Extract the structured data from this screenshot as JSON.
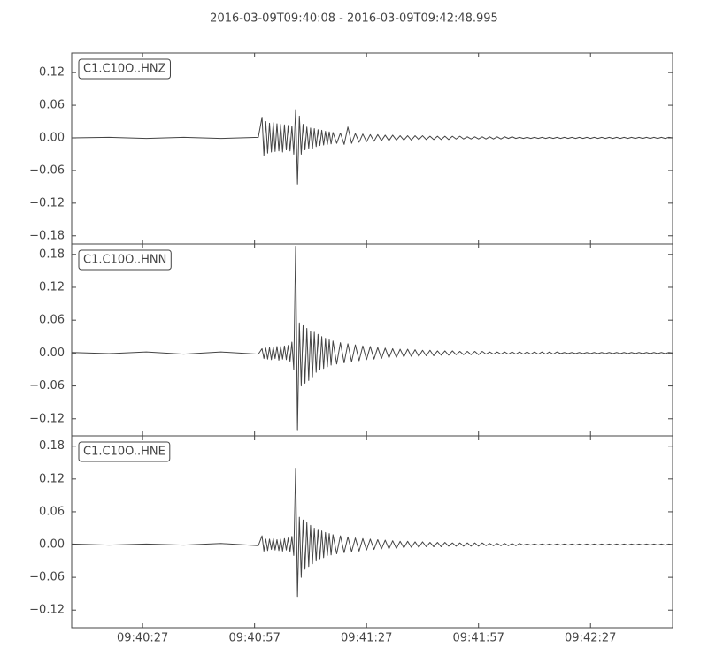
{
  "chart_data": {
    "type": "line",
    "title": "2016-03-09T09:40:08  -  2016-03-09T09:42:48.995",
    "xlim": [
      0,
      160.995
    ],
    "xticks": [
      {
        "value": 19,
        "label": "09:40:27"
      },
      {
        "value": 49,
        "label": "09:40:57"
      },
      {
        "value": 79,
        "label": "09:41:27"
      },
      {
        "value": 109,
        "label": "09:41:57"
      },
      {
        "value": 139,
        "label": "09:42:27"
      }
    ],
    "x": [
      0,
      10,
      20,
      30,
      40,
      50,
      51,
      51.5,
      52,
      52.5,
      53,
      53.5,
      54,
      54.5,
      55,
      55.5,
      56,
      56.5,
      57,
      57.5,
      58,
      58.5,
      59,
      59.5,
      60,
      60.5,
      61,
      61.5,
      62,
      62.5,
      63,
      63.5,
      64,
      64.5,
      65,
      65.5,
      66,
      66.5,
      67,
      67.5,
      68,
      68.5,
      69,
      69.5,
      70,
      71,
      72,
      73,
      74,
      75,
      76,
      77,
      78,
      79,
      80,
      81,
      82,
      83,
      84,
      85,
      86,
      87,
      88,
      89,
      90,
      91,
      92,
      93,
      94,
      95,
      96,
      97,
      98,
      99,
      100,
      101,
      102,
      103,
      104,
      105,
      106,
      107,
      108,
      109,
      110,
      111,
      112,
      113,
      114,
      115,
      116,
      117,
      118,
      119,
      120,
      121,
      122,
      123,
      124,
      125,
      126,
      127,
      128,
      129,
      130,
      131,
      132,
      133,
      134,
      135,
      136,
      137,
      138,
      139,
      140,
      141,
      142,
      143,
      144,
      145,
      146,
      147,
      148,
      149,
      150,
      151,
      152,
      153,
      154,
      155,
      156,
      157,
      158,
      159,
      160,
      160.995
    ],
    "series": [
      {
        "name": "C1.C10O..HNZ",
        "color": "#444444",
        "ylim": [
          -0.195,
          0.156
        ],
        "yticks": [
          {
            "value": -0.18,
            "label": "−0.18"
          },
          {
            "value": -0.12,
            "label": "−0.12"
          },
          {
            "value": -0.06,
            "label": "−0.06"
          },
          {
            "value": 0,
            "label": "0.00"
          },
          0.06,
          0.12
        ],
        "values": [
          0,
          0.001,
          -0.001,
          0.001,
          -0.001,
          0.001,
          0.038,
          -0.032,
          0.03,
          -0.028,
          0.027,
          -0.026,
          0.028,
          -0.025,
          0.026,
          -0.024,
          0.025,
          -0.026,
          0.024,
          -0.022,
          0.023,
          -0.024,
          0.022,
          -0.03,
          0.052,
          -0.085,
          0.04,
          -0.03,
          0.025,
          -0.022,
          0.02,
          -0.019,
          0.018,
          -0.02,
          0.017,
          -0.016,
          0.015,
          -0.014,
          0.014,
          -0.013,
          0.012,
          -0.012,
          0.011,
          -0.011,
          0.01,
          -0.01,
          0.009,
          -0.012,
          0.02,
          -0.01,
          0.008,
          -0.008,
          0.007,
          -0.007,
          0.006,
          -0.006,
          0.006,
          -0.005,
          0.005,
          -0.005,
          0.005,
          -0.004,
          0.004,
          -0.004,
          0.004,
          -0.004,
          0.004,
          -0.003,
          0.004,
          -0.003,
          0.003,
          -0.003,
          0.003,
          -0.003,
          0.003,
          -0.003,
          0.003,
          -0.002,
          0.003,
          -0.002,
          0.002,
          -0.002,
          0.002,
          -0.002,
          0.002,
          -0.002,
          0.002,
          -0.002,
          0.002,
          -0.002,
          0.002,
          -0.001,
          0.002,
          -0.001,
          0.001,
          -0.001,
          0.001,
          -0.001,
          0.001,
          -0.001,
          0.001,
          -0.001,
          0.001,
          -0.001,
          0.001,
          -0.001,
          0.001,
          -0.001,
          0.001,
          -0.001,
          0.001,
          -0.001,
          0.001,
          -0.001,
          0.001,
          -0.001,
          0.001,
          -0.001,
          0.001,
          -0.001,
          0.001,
          -0.001,
          0.001,
          -0.001,
          0.001,
          -0.001,
          0.001,
          -0.001,
          0.001,
          -0.001,
          0.001,
          -0.001,
          0.001,
          -0.001,
          0.001,
          0
        ]
      },
      {
        "name": "C1.C10O..HNN",
        "color": "#444444",
        "ylim": [
          -0.151,
          0.199
        ],
        "yticks": [
          {
            "value": -0.12,
            "label": "−0.12"
          },
          {
            "value": -0.06,
            "label": "−0.06"
          },
          {
            "value": 0,
            "label": "0.00"
          },
          0.06,
          0.12,
          0.18
        ],
        "values": [
          0.001,
          -0.001,
          0.002,
          -0.002,
          0.002,
          -0.002,
          0.008,
          -0.01,
          0.009,
          -0.011,
          0.01,
          -0.012,
          0.011,
          -0.01,
          0.012,
          -0.013,
          0.012,
          -0.011,
          0.013,
          -0.012,
          0.014,
          -0.015,
          0.02,
          -0.03,
          0.195,
          -0.14,
          0.055,
          -0.06,
          0.05,
          -0.055,
          0.045,
          -0.05,
          0.04,
          -0.045,
          0.038,
          -0.035,
          0.034,
          -0.03,
          0.03,
          -0.028,
          0.027,
          -0.025,
          0.024,
          -0.022,
          0.022,
          -0.02,
          0.019,
          -0.018,
          0.017,
          -0.016,
          0.015,
          -0.014,
          0.013,
          -0.012,
          0.012,
          -0.011,
          0.01,
          -0.01,
          0.009,
          -0.009,
          0.008,
          -0.008,
          0.007,
          -0.007,
          0.007,
          -0.006,
          0.006,
          -0.006,
          0.005,
          -0.005,
          0.005,
          -0.005,
          0.004,
          -0.004,
          0.004,
          -0.004,
          0.004,
          -0.003,
          0.003,
          -0.003,
          0.003,
          -0.003,
          0.003,
          -0.003,
          0.003,
          -0.002,
          0.002,
          -0.002,
          0.002,
          -0.002,
          0.002,
          -0.002,
          0.002,
          -0.002,
          0.002,
          -0.002,
          0.002,
          -0.002,
          0.002,
          -0.002,
          0.002,
          -0.002,
          0.002,
          -0.002,
          0.002,
          -0.001,
          0.001,
          -0.001,
          0.001,
          -0.001,
          0.001,
          -0.001,
          0.001,
          -0.001,
          0.001,
          -0.001,
          0.001,
          -0.001,
          0.001,
          -0.001,
          0.001,
          -0.001,
          0.001,
          -0.001,
          0.001,
          -0.001,
          0.001,
          -0.001,
          0.001,
          -0.001,
          0.001,
          -0.001,
          0.001,
          -0.001,
          0.001,
          0
        ]
      },
      {
        "name": "C1.C10O..HNE",
        "color": "#444444",
        "ylim": [
          -0.152,
          0.199
        ],
        "yticks": [
          {
            "value": -0.12,
            "label": "−0.12"
          },
          {
            "value": -0.06,
            "label": "−0.06"
          },
          {
            "value": 0,
            "label": "0.00"
          },
          0.06,
          0.12,
          0.18
        ],
        "values": [
          0.001,
          -0.001,
          0.001,
          -0.001,
          0.002,
          -0.002,
          0.016,
          -0.012,
          0.01,
          -0.011,
          0.01,
          -0.009,
          0.011,
          -0.01,
          0.009,
          -0.011,
          0.01,
          -0.012,
          0.011,
          -0.01,
          0.012,
          -0.013,
          0.015,
          -0.02,
          0.14,
          -0.095,
          0.05,
          -0.06,
          0.045,
          -0.045,
          0.04,
          -0.04,
          0.035,
          -0.035,
          0.03,
          -0.03,
          0.028,
          -0.026,
          0.025,
          -0.024,
          0.022,
          -0.02,
          0.02,
          -0.019,
          0.018,
          -0.017,
          0.016,
          -0.015,
          0.014,
          -0.013,
          0.012,
          -0.012,
          0.011,
          -0.01,
          0.01,
          -0.009,
          0.009,
          -0.008,
          0.008,
          -0.008,
          0.007,
          -0.007,
          0.006,
          -0.006,
          0.006,
          -0.005,
          0.005,
          -0.005,
          0.005,
          -0.004,
          0.004,
          -0.004,
          0.004,
          -0.004,
          0.004,
          -0.003,
          0.003,
          -0.003,
          0.003,
          -0.003,
          0.003,
          -0.003,
          0.003,
          -0.003,
          0.003,
          -0.002,
          0.002,
          -0.002,
          0.002,
          -0.002,
          0.002,
          -0.002,
          0.002,
          -0.002,
          0.002,
          -0.001,
          0.001,
          -0.001,
          0.001,
          -0.001,
          0.001,
          -0.001,
          0.001,
          -0.001,
          0.001,
          -0.001,
          0.001,
          -0.001,
          0.001,
          -0.001,
          0.001,
          -0.001,
          0.001,
          -0.001,
          0.001,
          -0.001,
          0.001,
          -0.001,
          0.001,
          -0.001,
          0.001,
          -0.001,
          0.001,
          -0.001,
          0.001,
          -0.001,
          0.001,
          -0.001,
          0.001,
          -0.001,
          0.001,
          -0.001,
          0.001,
          -0.001,
          0.001,
          0
        ]
      }
    ]
  }
}
